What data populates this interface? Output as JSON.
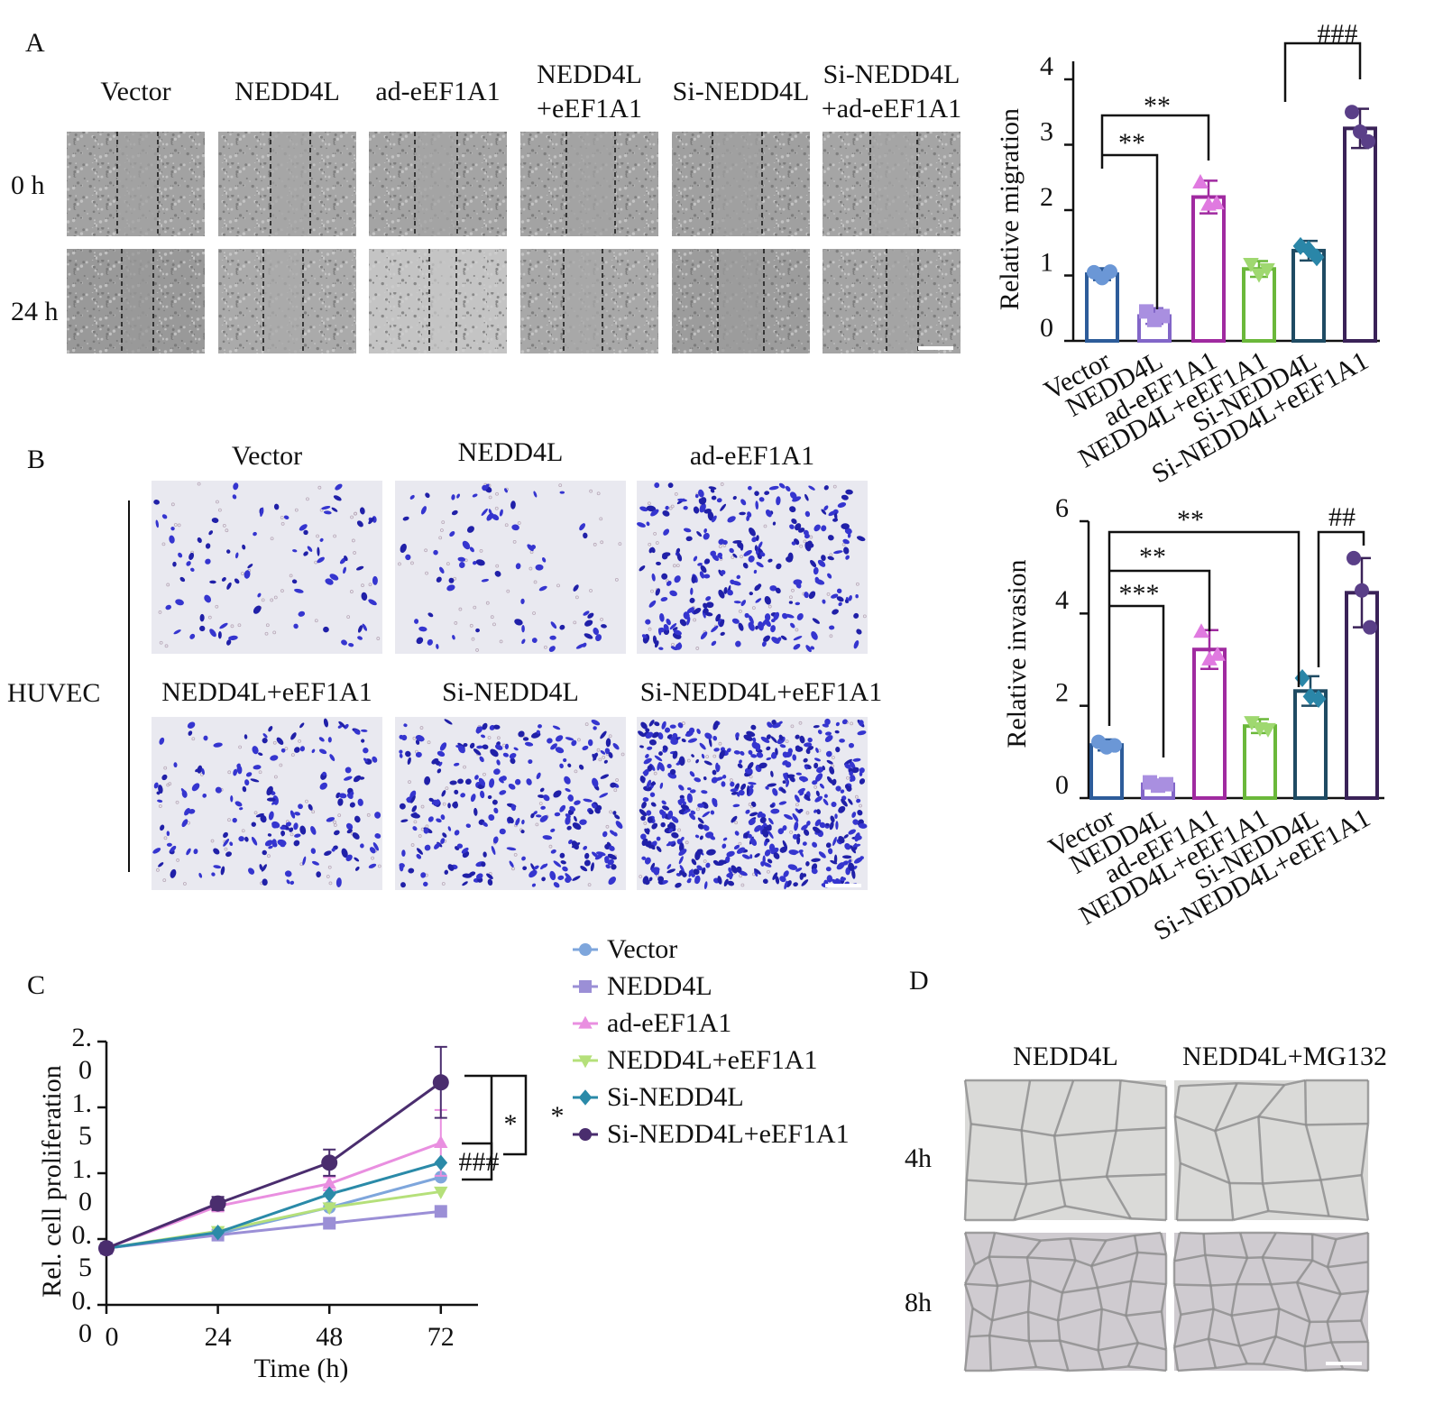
{
  "panel_labels": [
    "A",
    "B",
    "C",
    "D"
  ],
  "panel_a": {
    "groups": [
      [
        "Vector"
      ],
      [
        "NEDD4L"
      ],
      [
        "ad-eEF1A1"
      ],
      [
        "NEDD4L",
        "+eEF1A1"
      ],
      [
        "Si-NEDD4L"
      ],
      [
        "Si-NEDD4L",
        "+ad-eEF1A1"
      ]
    ],
    "times": [
      "0 h",
      "24 h"
    ]
  },
  "panel_b": {
    "cell_line": "HUVEC",
    "groups": [
      "Vector",
      "NEDD4L",
      "ad-eEF1A1",
      "NEDD4L+eEF1A1",
      "Si-NEDD4L",
      "Si-NEDD4L+eEF1A1"
    ]
  },
  "panel_d": {
    "groups": [
      "NEDD4L",
      "NEDD4L+MG132"
    ],
    "times": [
      "4h",
      "8h"
    ]
  },
  "chart_data": [
    {
      "type": "bar",
      "y_label": "Relative migration",
      "categories": [
        "Vector",
        "NEDD4L",
        "ad-eEF1A1",
        "NEDD4L+eEF1A1",
        "Si-NEDD4L",
        "Si-NEDD4L+eEF1A1"
      ],
      "values": [
        1.02,
        0.38,
        2.2,
        1.1,
        1.38,
        3.25
      ],
      "errors": [
        0.09,
        0.12,
        0.25,
        0.12,
        0.15,
        0.3
      ],
      "points": [
        [
          1.05,
          0.96,
          1.06
        ],
        [
          0.45,
          0.32,
          0.38
        ],
        [
          2.42,
          2.08,
          2.1
        ],
        [
          1.18,
          1.02,
          1.1
        ],
        [
          1.45,
          1.4,
          1.28
        ],
        [
          3.5,
          3.2,
          3.05
        ]
      ],
      "colors": [
        "#2d5c9a",
        "#8266c8",
        "#a02aa0",
        "#6bb83a",
        "#1f4b63",
        "#3a2258"
      ],
      "point_colors": [
        "#6b97d6",
        "#a98fe0",
        "#e07ae0",
        "#9fd870",
        "#2a86a8",
        "#5a3f88"
      ],
      "markers": [
        "circle",
        "square",
        "triangle",
        "triangle-down",
        "diamond",
        "circle"
      ],
      "ylim": [
        0,
        4
      ],
      "yticks": [
        0,
        1,
        2,
        3,
        4
      ],
      "annotations": [
        "**",
        "**",
        "###"
      ]
    },
    {
      "type": "bar",
      "y_label": "Relative invasion",
      "categories": [
        "Vector",
        "NEDD4L",
        "ad-eEF1A1",
        "NEDD4L+eEF1A1",
        "Si-NEDD4L",
        "Si-NEDD4L+eEF1A1"
      ],
      "values": [
        1.15,
        0.3,
        3.22,
        1.56,
        2.32,
        4.45
      ],
      "errors": [
        0.12,
        0.06,
        0.42,
        0.15,
        0.32,
        0.75
      ],
      "points": [
        [
          1.22,
          1.1,
          1.14
        ],
        [
          0.34,
          0.27,
          0.3
        ],
        [
          3.6,
          3.0,
          3.1
        ],
        [
          1.65,
          1.52,
          1.5
        ],
        [
          2.6,
          2.2,
          2.15
        ],
        [
          5.2,
          4.5,
          3.7
        ]
      ],
      "colors": [
        "#2d5c9a",
        "#8266c8",
        "#a02aa0",
        "#6bb83a",
        "#1f4b63",
        "#3a2258"
      ],
      "point_colors": [
        "#6b97d6",
        "#a98fe0",
        "#e07ae0",
        "#9fd870",
        "#2a86a8",
        "#5a3f88"
      ],
      "markers": [
        "circle",
        "square",
        "triangle",
        "triangle-down",
        "diamond",
        "circle"
      ],
      "ylim": [
        0,
        6
      ],
      "yticks": [
        0,
        2,
        4,
        6
      ],
      "annotations": [
        "**",
        "**",
        "***",
        "##"
      ]
    },
    {
      "type": "line",
      "x_label": "Time (h)",
      "y_label": "Rel. cell proliferation",
      "x": [
        0,
        24,
        48,
        72
      ],
      "xlim": [
        0,
        80
      ],
      "xticks": [
        0,
        24,
        48,
        72
      ],
      "ylim": [
        0,
        2
      ],
      "yticks": [
        {
          "value": 0,
          "label": "0.0"
        },
        {
          "value": 0.5,
          "label": "0.5"
        },
        {
          "value": 1,
          "label": "1.0"
        },
        {
          "value": 1.5,
          "label": "1.5"
        },
        {
          "value": 2,
          "label": "2.0"
        }
      ],
      "series": [
        {
          "name": "Vector",
          "color": "#7ea6dc",
          "marker": "circle",
          "values": [
            0.43,
            0.54,
            0.74,
            0.97
          ]
        },
        {
          "name": "NEDD4L",
          "color": "#9b8fd6",
          "marker": "square",
          "values": [
            0.43,
            0.53,
            0.62,
            0.71
          ]
        },
        {
          "name": "ad-eEF1A1",
          "color": "#e98fe0",
          "marker": "triangle",
          "values": [
            0.43,
            0.75,
            0.92,
            1.23
          ],
          "errors": [
            null,
            0.04,
            0.05,
            0.25
          ]
        },
        {
          "name": "NEDD4L+eEF1A1",
          "color": "#b5e07a",
          "marker": "triangle-down",
          "values": [
            0.43,
            0.56,
            0.74,
            0.86
          ]
        },
        {
          "name": "Si-NEDD4L",
          "color": "#2a8aa8",
          "marker": "diamond",
          "values": [
            0.43,
            0.55,
            0.84,
            1.08
          ]
        },
        {
          "name": "Si-NEDD4L+eEF1A1",
          "color": "#4a2d6e",
          "marker": "circle",
          "values": [
            0.43,
            0.77,
            1.08,
            1.69
          ],
          "errors": [
            null,
            0.05,
            0.1,
            0.27
          ]
        }
      ],
      "annotations": [
        "*",
        "*",
        "###"
      ]
    }
  ]
}
